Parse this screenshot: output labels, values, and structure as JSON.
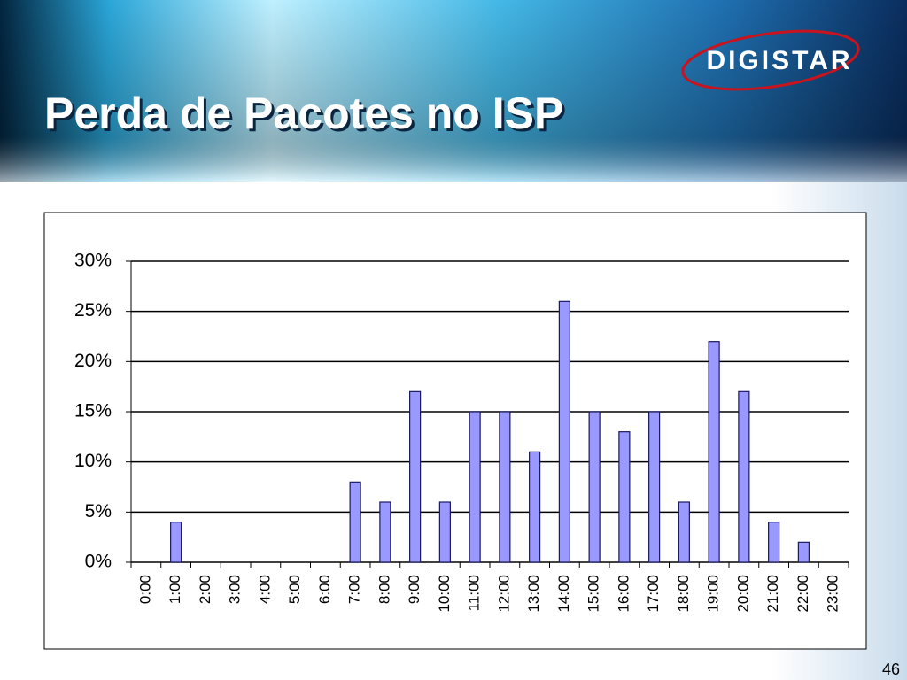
{
  "logo": "DIGISTAR",
  "slide_number": "46",
  "chart_data": {
    "type": "bar",
    "title": "Perda de Pacotes no ISP",
    "categories": [
      "0:00",
      "1:00",
      "2:00",
      "3:00",
      "4:00",
      "5:00",
      "6:00",
      "7:00",
      "8:00",
      "9:00",
      "10:00",
      "11:00",
      "12:00",
      "13:00",
      "14:00",
      "15:00",
      "16:00",
      "17:00",
      "18:00",
      "19:00",
      "20:00",
      "21:00",
      "22:00",
      "23:00"
    ],
    "values": [
      0,
      4,
      0,
      0,
      0,
      0,
      0,
      8,
      6,
      17,
      6,
      15,
      15,
      11,
      26,
      15,
      13,
      15,
      6,
      22,
      17,
      4,
      2,
      0
    ],
    "color": "#9999ff",
    "ylim": [
      0,
      30
    ],
    "yticks": [
      {
        "value": 0,
        "label": "0%"
      },
      {
        "value": 5,
        "label": "5%"
      },
      {
        "value": 10,
        "label": "10%"
      },
      {
        "value": 15,
        "label": "15%"
      },
      {
        "value": 20,
        "label": "20%"
      },
      {
        "value": 25,
        "label": "25%"
      },
      {
        "value": 30,
        "label": "30%"
      }
    ],
    "grid": true
  }
}
